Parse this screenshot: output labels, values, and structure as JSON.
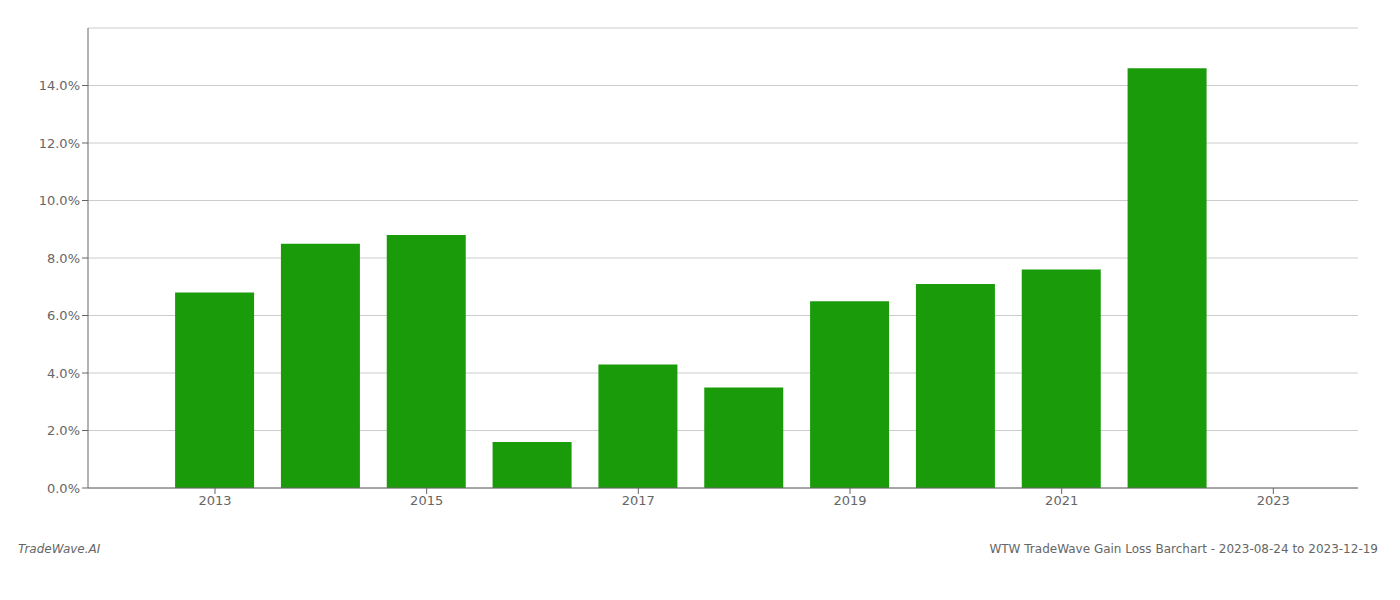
{
  "chart_data": {
    "type": "bar",
    "x": [
      2013,
      2014,
      2015,
      2016,
      2017,
      2018,
      2019,
      2020,
      2021,
      2022
    ],
    "values": [
      0.068,
      0.085,
      0.088,
      0.016,
      0.043,
      0.035,
      0.065,
      0.071,
      0.076,
      0.146
    ],
    "color": "#1a9c0a",
    "xlim": [
      2011.8,
      2023.8
    ],
    "xticks": [
      2013,
      2015,
      2017,
      2019,
      2021,
      2023
    ],
    "ylim": [
      0,
      0.16
    ],
    "yticks": [
      {
        "value": 0.0,
        "label": "0.0%"
      },
      {
        "value": 0.02,
        "label": "2.0%"
      },
      {
        "value": 0.04,
        "label": "4.0%"
      },
      {
        "value": 0.06,
        "label": "6.0%"
      },
      {
        "value": 0.08,
        "label": "8.0%"
      },
      {
        "value": 0.1,
        "label": "10.0%"
      },
      {
        "value": 0.12,
        "label": "12.0%"
      },
      {
        "value": 0.14,
        "label": "14.0%"
      }
    ],
    "grid": true,
    "annotations": [
      "TradeWave.AI",
      "WTW TradeWave Gain Loss Barchart - 2023-08-24 to 2023-12-19"
    ]
  }
}
